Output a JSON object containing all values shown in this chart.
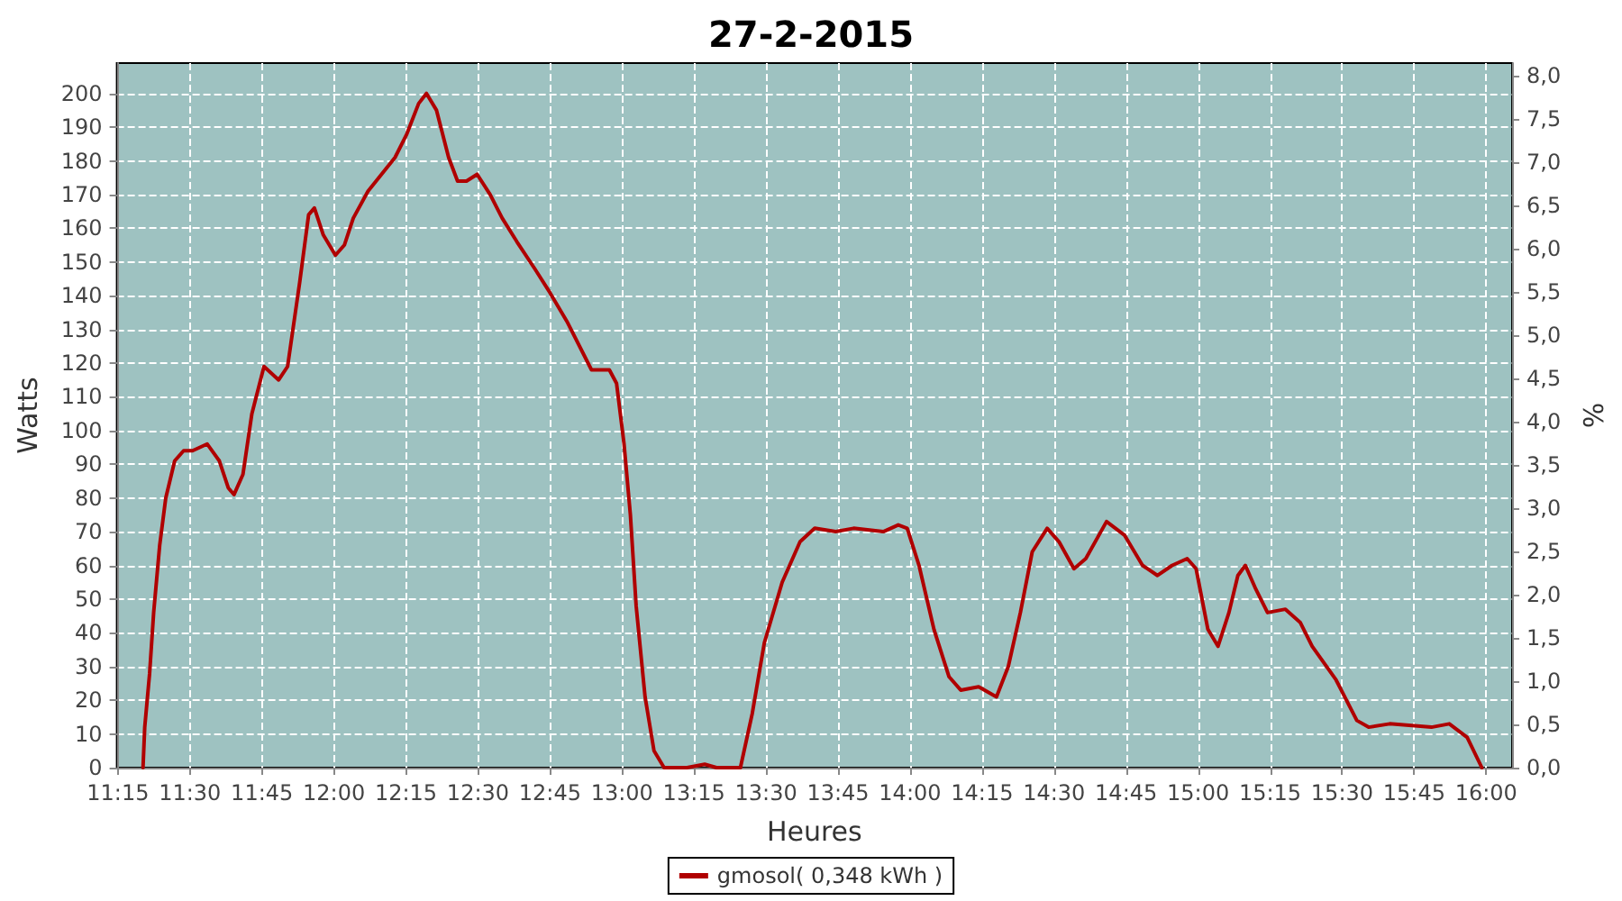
{
  "chart_data": {
    "type": "line",
    "title": "27-2-2015",
    "xlabel": "Heures",
    "ylabel": "Watts",
    "y2label": "%",
    "xlim": [
      11.246,
      16.09
    ],
    "ylim": [
      0,
      209
    ],
    "y2lim": [
      0,
      8.15
    ],
    "xticks": [
      {
        "value": 11.25,
        "label": "11:15"
      },
      {
        "value": 11.5,
        "label": "11:30"
      },
      {
        "value": 11.75,
        "label": "11:45"
      },
      {
        "value": 12,
        "label": "12:00"
      },
      {
        "value": 12.25,
        "label": "12:15"
      },
      {
        "value": 12.5,
        "label": "12:30"
      },
      {
        "value": 12.75,
        "label": "12:45"
      },
      {
        "value": 13,
        "label": "13:00"
      },
      {
        "value": 13.25,
        "label": "13:15"
      },
      {
        "value": 13.5,
        "label": "13:30"
      },
      {
        "value": 13.75,
        "label": "13:45"
      },
      {
        "value": 14,
        "label": "14:00"
      },
      {
        "value": 14.25,
        "label": "14:15"
      },
      {
        "value": 14.5,
        "label": "14:30"
      },
      {
        "value": 14.75,
        "label": "14:45"
      },
      {
        "value": 15,
        "label": "15:00"
      },
      {
        "value": 15.25,
        "label": "15:15"
      },
      {
        "value": 15.5,
        "label": "15:30"
      },
      {
        "value": 15.75,
        "label": "15:45"
      },
      {
        "value": 16,
        "label": "16:00"
      }
    ],
    "yticks": [
      0,
      10,
      20,
      30,
      40,
      50,
      60,
      70,
      80,
      90,
      100,
      110,
      120,
      130,
      140,
      150,
      160,
      170,
      180,
      190,
      200
    ],
    "y2ticks": [
      {
        "value": 0,
        "label": "0,0"
      },
      {
        "value": 0.5,
        "label": "0,5"
      },
      {
        "value": 1,
        "label": "1,0"
      },
      {
        "value": 1.5,
        "label": "1,5"
      },
      {
        "value": 2,
        "label": "2,0"
      },
      {
        "value": 2.5,
        "label": "2,5"
      },
      {
        "value": 3,
        "label": "3,0"
      },
      {
        "value": 3.5,
        "label": "3,5"
      },
      {
        "value": 4,
        "label": "4,0"
      },
      {
        "value": 4.5,
        "label": "4,5"
      },
      {
        "value": 5,
        "label": "5,0"
      },
      {
        "value": 5.5,
        "label": "5,5"
      },
      {
        "value": 6,
        "label": "6,0"
      },
      {
        "value": 6.5,
        "label": "6,5"
      },
      {
        "value": 7,
        "label": "7,0"
      },
      {
        "value": 7.5,
        "label": "7,5"
      },
      {
        "value": 8,
        "label": "8,0"
      }
    ],
    "grid": true,
    "legend": "bottom",
    "marker": "none",
    "line_style": "solid",
    "series": [
      {
        "name": "gmosol( 0,348 kWh )",
        "color": "#b00000",
        "x": [
          11.337,
          11.343,
          11.36,
          11.374,
          11.395,
          11.416,
          11.447,
          11.478,
          11.509,
          11.56,
          11.602,
          11.633,
          11.653,
          11.684,
          11.715,
          11.757,
          11.808,
          11.839,
          11.881,
          11.912,
          11.932,
          11.963,
          12.005,
          12.036,
          12.067,
          12.118,
          12.212,
          12.253,
          12.294,
          12.321,
          12.356,
          12.398,
          12.429,
          12.46,
          12.497,
          12.542,
          12.584,
          12.635,
          12.697,
          12.749,
          12.811,
          12.894,
          12.956,
          12.981,
          13.007,
          13.029,
          13.049,
          13.08,
          13.111,
          13.146,
          13.225,
          13.287,
          13.328,
          13.411,
          13.452,
          13.494,
          13.556,
          13.618,
          13.669,
          13.742,
          13.804,
          13.907,
          13.959,
          13.99,
          14.031,
          14.083,
          14.135,
          14.176,
          14.238,
          14.3,
          14.341,
          14.383,
          14.424,
          14.476,
          14.517,
          14.569,
          14.61,
          14.682,
          14.744,
          14.807,
          14.859,
          14.91,
          14.962,
          14.993,
          15.034,
          15.069,
          15.107,
          15.138,
          15.164,
          15.2,
          15.241,
          15.303,
          15.355,
          15.396,
          15.479,
          15.551,
          15.592,
          15.665,
          15.81,
          15.872,
          15.934,
          15.985
        ],
        "values": [
          0,
          12,
          28,
          46,
          66,
          80,
          91,
          94,
          94,
          96,
          91,
          83,
          81,
          87,
          105,
          119,
          115,
          119,
          144,
          164,
          166,
          158,
          152,
          155,
          163,
          171,
          181,
          188,
          197,
          200,
          195,
          181,
          174,
          174,
          176,
          170,
          163,
          156,
          148,
          141,
          132,
          118,
          118,
          114,
          96,
          75,
          48,
          21,
          5,
          0,
          0,
          1,
          0,
          0,
          16,
          37,
          55,
          67,
          71,
          70,
          71,
          70,
          72,
          71,
          60,
          41,
          27,
          23,
          24,
          21,
          30,
          46,
          64,
          71,
          67,
          59,
          62,
          73,
          69,
          60,
          57,
          60,
          62,
          59,
          41,
          36,
          46,
          57,
          60,
          53,
          46,
          47,
          43,
          36,
          26,
          14,
          12,
          13,
          12,
          13,
          9,
          0
        ]
      }
    ]
  }
}
